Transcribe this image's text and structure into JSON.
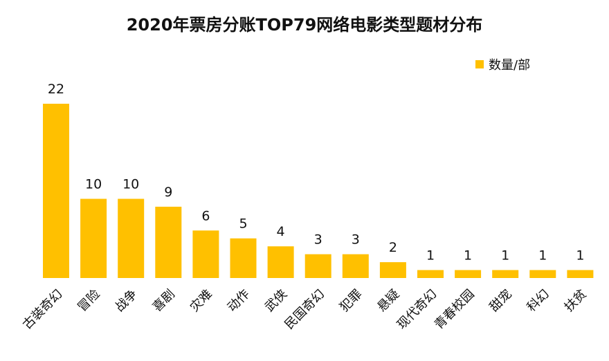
{
  "chart_data": {
    "type": "bar",
    "title": "2020年票房分账TOP79网络电影类型题材分布",
    "xlabel": "",
    "ylabel": "",
    "ylim": [
      0,
      22
    ],
    "grid": false,
    "legend_position": "top-right",
    "bar_color": "#FFC000",
    "categories": [
      "古装奇幻",
      "冒险",
      "战争",
      "喜剧",
      "灾难",
      "动作",
      "武侠",
      "民国奇幻",
      "犯罪",
      "悬疑",
      "现代奇幻",
      "青春校园",
      "甜宠",
      "科幻",
      "扶贫"
    ],
    "series": [
      {
        "name": "数量/部",
        "values": [
          22,
          10,
          10,
          9,
          6,
          5,
          4,
          3,
          3,
          2,
          1,
          1,
          1,
          1,
          1
        ]
      }
    ]
  }
}
